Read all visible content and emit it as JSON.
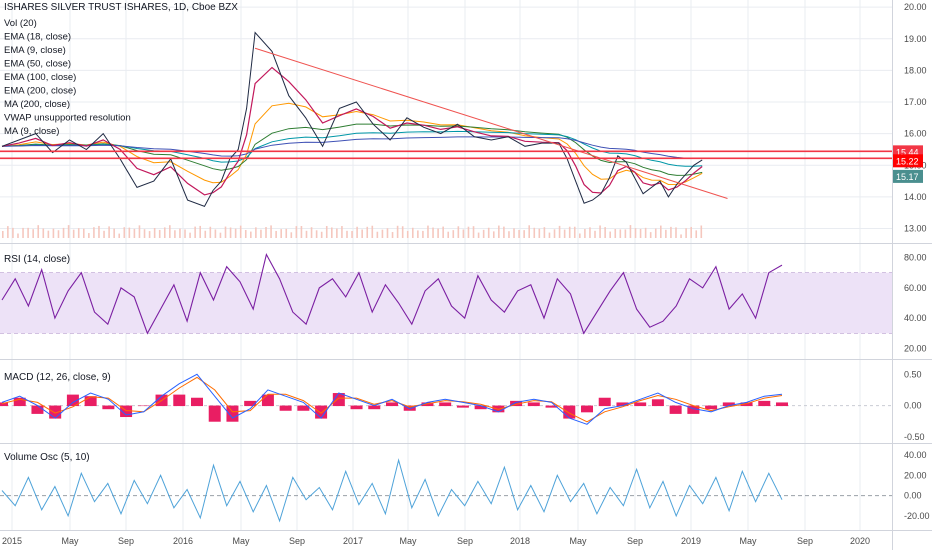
{
  "header": {
    "title": "ISHARES SILVER TRUST ISHARES, 1D, Cboe BZX"
  },
  "indicators": [
    "Vol (20)",
    "EMA (18, close)",
    "EMA (9, close)",
    "EMA (50, close)",
    "EMA (100, close)",
    "EMA (200, close)",
    "MA (200, close)",
    "VWAP unsupported resolution",
    "MA (9, close)"
  ],
  "price_labels": [
    {
      "label": "15.44",
      "bg": "#f23645",
      "fg": "#ffffff"
    },
    {
      "label": "15.22",
      "bg": "#ff0000",
      "fg": "#ffffff"
    },
    {
      "label": "15.17",
      "bg": "#4a8f8f",
      "fg": "#ffffff"
    }
  ],
  "colors": {
    "grid": "#e9ecf1",
    "axis_text": "#4a4a4a",
    "price_line": "#e0433a",
    "ema_magenta": "#c2185b",
    "ema_blue": "#3f51b5",
    "ema_green": "#2e7d32",
    "ema_orange": "#ff9800",
    "ema_teal": "#0097a7",
    "trendline": "#ef5350",
    "horizontal_line": "#f23645",
    "rsi": "#7b1fa2",
    "rsi_band": "#ede2f7",
    "macd_line": "#2962ff",
    "signal_line": "#ff6d00",
    "hist": "#e91e63",
    "vol_osc": "#4fa3d9",
    "volume": "#f5c7be"
  },
  "chart_data": [
    {
      "type": "line",
      "panel": "price",
      "x_ticks": [
        "2015",
        "May",
        "Sep",
        "2016",
        "May",
        "Sep",
        "2017",
        "May",
        "Sep",
        "2018",
        "May",
        "Sep",
        "2019",
        "May",
        "Sep",
        "2020"
      ],
      "y_ticks": [
        "20.00",
        "19.00",
        "18.00",
        "17.00",
        "16.00",
        "15.00",
        "14.00",
        "13.00"
      ],
      "ylim": [
        12.7,
        20.1
      ],
      "series": [
        {
          "x": [
            0,
            4,
            8,
            12,
            16,
            20,
            24,
            28,
            32,
            36,
            40,
            44,
            48,
            50,
            52,
            54,
            56,
            58,
            60,
            64,
            68,
            72,
            76,
            80,
            84,
            88,
            92,
            96,
            100,
            104,
            108,
            112,
            116,
            120,
            124,
            128,
            132,
            134,
            136,
            138,
            140,
            142,
            144,
            146,
            148,
            150,
            152,
            154,
            156,
            158,
            160,
            162,
            164,
            166
          ],
          "y": [
            15.6,
            15.8,
            16.0,
            15.4,
            15.8,
            15.5,
            16.0,
            15.2,
            14.3,
            14.5,
            15.2,
            13.9,
            13.7,
            14.2,
            14.5,
            15.2,
            15.5,
            16.8,
            19.2,
            18.6,
            17.2,
            16.5,
            15.6,
            16.8,
            17.0,
            16.3,
            15.8,
            16.5,
            16.2,
            16.0,
            16.3,
            15.9,
            15.8,
            15.9,
            15.6,
            15.7,
            15.7,
            15.2,
            14.5,
            13.8,
            13.9,
            14.1,
            14.6,
            15.3,
            15.1,
            14.6,
            14.1,
            14.3,
            14.5,
            14.0,
            14.4,
            14.7,
            15.0,
            15.17
          ]
        }
      ]
    },
    {
      "type": "line",
      "panel": "trendline",
      "points": [
        [
          60,
          18.7
        ],
        [
          166,
          14.3
        ]
      ]
    },
    {
      "type": "line",
      "panel": "horizontal",
      "levels": [
        15.44,
        15.22
      ]
    },
    {
      "type": "line",
      "panel": "RSI",
      "title": "RSI (14, close)",
      "y_ticks": [
        "80.00",
        "60.00",
        "40.00",
        "20.00"
      ],
      "ylim": [
        15,
        85
      ],
      "band": [
        30,
        70
      ],
      "values": [
        52,
        66,
        48,
        72,
        40,
        58,
        70,
        44,
        36,
        60,
        54,
        30,
        46,
        62,
        38,
        70,
        52,
        74,
        64,
        46,
        82,
        66,
        44,
        36,
        60,
        66,
        54,
        70,
        44,
        62,
        50,
        36,
        58,
        66,
        48,
        40,
        68,
        52,
        44,
        58,
        62,
        40,
        66,
        56,
        30,
        44,
        58,
        70,
        46,
        34,
        38,
        48,
        66,
        60,
        74,
        46,
        56,
        40,
        70,
        75
      ]
    },
    {
      "type": "line",
      "panel": "MACD",
      "title": "MACD (12, 26, close, 9)",
      "y_ticks": [
        "0.50",
        "0.00",
        "-0.50"
      ],
      "ylim": [
        -0.55,
        0.6
      ],
      "macd": [
        0.05,
        0.15,
        0.0,
        -0.2,
        0.05,
        0.2,
        0.1,
        -0.15,
        -0.1,
        0.15,
        0.35,
        0.5,
        0.15,
        -0.2,
        -0.05,
        0.25,
        0.15,
        0.05,
        -0.2,
        0.2,
        0.1,
        0.0,
        0.1,
        -0.05,
        0.05,
        0.1,
        0.05,
        0.0,
        -0.1,
        0.05,
        0.1,
        0.05,
        -0.2,
        -0.3,
        -0.05,
        0.0,
        0.1,
        0.2,
        0.05,
        -0.05,
        -0.1,
        0.0,
        0.05,
        0.15,
        0.18
      ],
      "signal": [
        0.03,
        0.1,
        0.05,
        -0.12,
        -0.02,
        0.14,
        0.12,
        -0.08,
        -0.1,
        0.08,
        0.28,
        0.45,
        0.25,
        -0.1,
        -0.08,
        0.18,
        0.18,
        0.08,
        -0.12,
        0.12,
        0.12,
        0.02,
        0.08,
        -0.02,
        0.03,
        0.08,
        0.06,
        0.02,
        -0.06,
        0.02,
        0.08,
        0.06,
        -0.12,
        -0.26,
        -0.1,
        -0.02,
        0.08,
        0.16,
        0.1,
        0.0,
        -0.08,
        -0.02,
        0.03,
        0.12,
        0.16
      ]
    },
    {
      "type": "line",
      "panel": "Volume Osc",
      "title": "Volume Osc (5, 10)",
      "y_ticks": [
        "40.00",
        "20.00",
        "0.00",
        "-20.00"
      ],
      "ylim": [
        -30,
        45
      ],
      "values": [
        5,
        -10,
        18,
        -14,
        9,
        -20,
        22,
        -6,
        12,
        -18,
        15,
        -8,
        20,
        -12,
        6,
        -22,
        30,
        -10,
        14,
        -16,
        10,
        -25,
        18,
        -4,
        8,
        -14,
        24,
        -9,
        12,
        -18,
        35,
        -12,
        16,
        -20,
        6,
        -10,
        14,
        -8,
        28,
        -14,
        10,
        -16,
        20,
        -6,
        12,
        -18,
        8,
        -10,
        26,
        -12,
        14,
        -20,
        10,
        -8,
        18,
        -15,
        24,
        -6,
        22,
        -4
      ]
    }
  ]
}
